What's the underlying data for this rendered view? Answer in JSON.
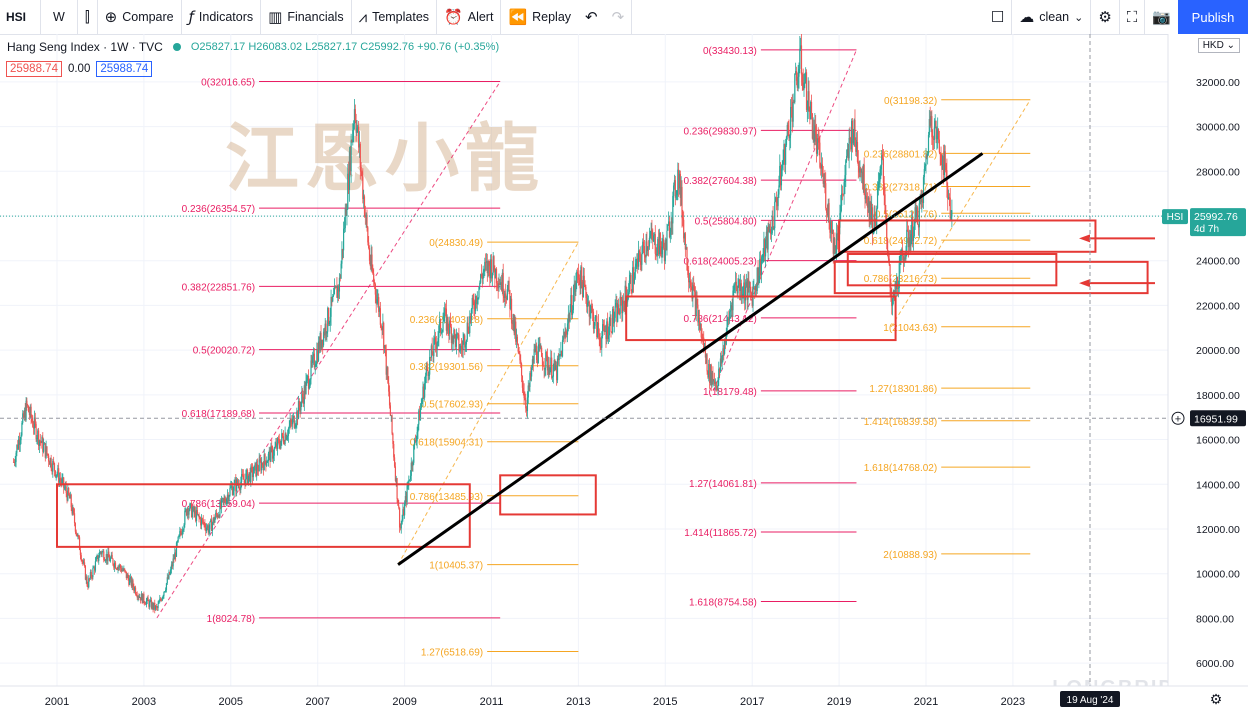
{
  "toolbar": {
    "symbol": "HSI",
    "interval": "W",
    "compare": "Compare",
    "indicators": "Indicators",
    "financials": "Financials",
    "templates": "Templates",
    "alert": "Alert",
    "replay": "Replay",
    "layout_name": "clean",
    "publish": "Publish"
  },
  "legend": {
    "title": "Hang Seng Index · 1W · TVC",
    "ohlc": "O25827.17  H26083.02  L25827.17  C25992.76  +90.76 (+0.35%)",
    "sell": "25988.74",
    "spread": "0.00",
    "buy": "25988.74"
  },
  "currency": "HKD",
  "watermark": "江恩小龍",
  "brand_watermark": "LONGBRIDGE",
  "price_tags": {
    "last_label": "HSI",
    "last_value": "25992.76",
    "countdown": "4d 7h",
    "crosshair_value": "16951.99",
    "crosshair_date": "19 Aug '24"
  },
  "colors": {
    "fib_red": "#e91e63",
    "fib_orange": "#f5a623",
    "up": "#26a69a",
    "down": "#ef5350",
    "box": "#e53935",
    "trend": "#000000"
  },
  "chart_data": {
    "type": "candlestick",
    "title": "Hang Seng Index · 1W · TVC",
    "x_ticks": [
      "2001",
      "2003",
      "2005",
      "2007",
      "2009",
      "2011",
      "2013",
      "2015",
      "2017",
      "2019",
      "2021",
      "2023"
    ],
    "y_ticks": [
      6000,
      8000,
      10000,
      12000,
      14000,
      16000,
      18000,
      20000,
      22000,
      24000,
      26000,
      28000,
      30000,
      32000
    ],
    "ylim": [
      5200,
      34600
    ],
    "price_path": [
      [
        2000.0,
        15000
      ],
      [
        2000.3,
        17500
      ],
      [
        2000.6,
        16000
      ],
      [
        2001.0,
        14500
      ],
      [
        2001.3,
        13300
      ],
      [
        2001.7,
        9500
      ],
      [
        2002.0,
        11000
      ],
      [
        2002.5,
        10200
      ],
      [
        2002.9,
        9000
      ],
      [
        2003.3,
        8400
      ],
      [
        2003.6,
        10000
      ],
      [
        2004.0,
        13000
      ],
      [
        2004.5,
        12000
      ],
      [
        2005.0,
        13800
      ],
      [
        2005.5,
        14500
      ],
      [
        2006.0,
        15500
      ],
      [
        2006.5,
        17000
      ],
      [
        2007.0,
        20000
      ],
      [
        2007.5,
        23000
      ],
      [
        2007.85,
        31000
      ],
      [
        2008.2,
        24000
      ],
      [
        2008.5,
        21000
      ],
      [
        2008.9,
        12000
      ],
      [
        2009.0,
        13000
      ],
      [
        2009.5,
        19000
      ],
      [
        2009.9,
        21500
      ],
      [
        2010.3,
        20000
      ],
      [
        2010.8,
        23500
      ],
      [
        2011.0,
        23800
      ],
      [
        2011.4,
        22500
      ],
      [
        2011.8,
        17500
      ],
      [
        2012.0,
        20000
      ],
      [
        2012.5,
        19000
      ],
      [
        2013.0,
        23500
      ],
      [
        2013.5,
        20500
      ],
      [
        2014.0,
        22000
      ],
      [
        2014.6,
        25000
      ],
      [
        2015.0,
        24500
      ],
      [
        2015.3,
        28000
      ],
      [
        2015.5,
        24000
      ],
      [
        2016.0,
        19000
      ],
      [
        2016.2,
        18500
      ],
      [
        2016.6,
        23000
      ],
      [
        2017.0,
        22500
      ],
      [
        2017.5,
        26000
      ],
      [
        2018.1,
        33000
      ],
      [
        2018.6,
        28000
      ],
      [
        2018.9,
        24500
      ],
      [
        2019.3,
        30000
      ],
      [
        2019.8,
        25500
      ],
      [
        2020.0,
        28500
      ],
      [
        2020.2,
        21800
      ],
      [
        2020.5,
        24500
      ],
      [
        2020.9,
        26500
      ],
      [
        2021.1,
        30500
      ],
      [
        2021.4,
        28500
      ],
      [
        2021.6,
        25900
      ]
    ],
    "fib_sets": [
      {
        "color": "red",
        "levels": [
          {
            "label": "0(32016.65)",
            "price": 32016.65
          },
          {
            "label": "0.236(26354.57)",
            "price": 26354.57
          },
          {
            "label": "0.382(22851.76)",
            "price": 22851.76
          },
          {
            "label": "0.5(20020.72)",
            "price": 20020.72
          },
          {
            "label": "0.618(17189.68)",
            "price": 17189.68
          },
          {
            "label": "0.786(13159.04)",
            "price": 13159.04
          },
          {
            "label": "1(8024.78)",
            "price": 8024.78
          }
        ]
      },
      {
        "color": "orange",
        "levels": [
          {
            "label": "0(24830.49)",
            "price": 24830.49
          },
          {
            "label": "0.236(21403.28)",
            "price": 21403.28
          },
          {
            "label": "0.382(19301.56)",
            "price": 19301.56
          },
          {
            "label": "0.5(17602.93)",
            "price": 17602.93
          },
          {
            "label": "0.618(15904.31)",
            "price": 15904.31
          },
          {
            "label": "0.786(13485.93)",
            "price": 13485.93
          },
          {
            "label": "1(10405.37)",
            "price": 10405.37
          },
          {
            "label": "1.27(6518.69)",
            "price": 6518.69
          }
        ]
      },
      {
        "color": "red",
        "levels": [
          {
            "label": "0(33430.13)",
            "price": 33430.13
          },
          {
            "label": "0.236(29830.97)",
            "price": 29830.97
          },
          {
            "label": "0.382(27604.38)",
            "price": 27604.38
          },
          {
            "label": "0.5(25804.80)",
            "price": 25804.8
          },
          {
            "label": "0.618(24005.23)",
            "price": 24005.23
          },
          {
            "label": "0.786(21443.12)",
            "price": 21443.12
          },
          {
            "label": "1(18179.48)",
            "price": 18179.48
          },
          {
            "label": "1.27(14061.81)",
            "price": 14061.81
          },
          {
            "label": "1.414(11865.72)",
            "price": 11865.72
          },
          {
            "label": "1.618(8754.58)",
            "price": 8754.58
          }
        ]
      },
      {
        "color": "orange",
        "levels": [
          {
            "label": "0(31198.32)",
            "price": 31198.32
          },
          {
            "label": "0.236(28801.82)",
            "price": 28801.82
          },
          {
            "label": "0.382(27318.71)",
            "price": 27318.71
          },
          {
            "label": "0.5(26120.76)",
            "price": 26120.76
          },
          {
            "label": "0.618(24922.72)",
            "price": 24922.72
          },
          {
            "label": "0.786(23216.73)",
            "price": 23216.73
          },
          {
            "label": "1(21043.63)",
            "price": 21043.63
          },
          {
            "label": "1.27(18301.86)",
            "price": 18301.86
          },
          {
            "label": "1.414(16839.58)",
            "price": 16839.58
          },
          {
            "label": "1.618(14768.02)",
            "price": 14768.02
          },
          {
            "label": "2(10888.93)",
            "price": 10888.93
          }
        ]
      }
    ],
    "trendline": {
      "from": [
        2008.85,
        10405
      ],
      "to": [
        2022.3,
        28800
      ]
    },
    "grid": true,
    "legend_position": "top-left"
  }
}
